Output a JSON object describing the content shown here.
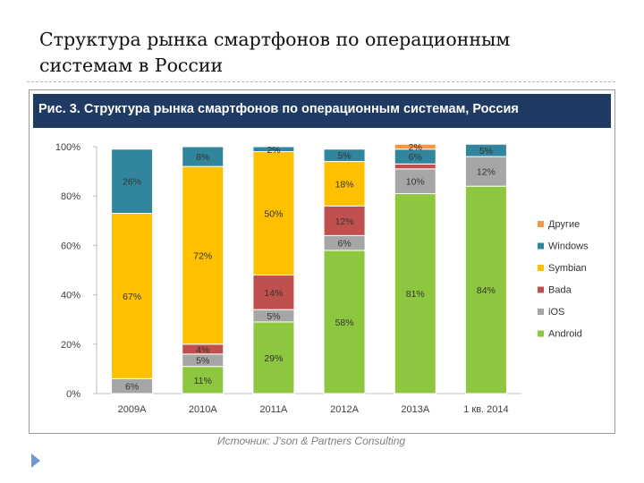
{
  "slide": {
    "title_lines": [
      "Структура рынка смартфонов по операционным",
      "системам в России"
    ],
    "source": "Источник: J'son & Partners Consulting"
  },
  "chart_data": {
    "type": "bar",
    "stacked": true,
    "title": "Рис. 3. Структура рынка смартфонов по операционным системам, Россия",
    "categories": [
      "2009А",
      "2010А",
      "2011А",
      "2012А",
      "2013А",
      "1 кв. 2014"
    ],
    "ylim": [
      0,
      100
    ],
    "yticks": [
      "0%",
      "20%",
      "40%",
      "60%",
      "80%",
      "100%"
    ],
    "grid": false,
    "legend_position": "right",
    "series": [
      {
        "name": "Android",
        "color": "#8dc63f",
        "values": [
          0,
          11,
          29,
          58,
          81,
          84
        ],
        "labels": [
          "",
          "11%",
          "29%",
          "58%",
          "81%",
          "84%"
        ]
      },
      {
        "name": "iOS",
        "color": "#a6a6a6",
        "values": [
          6,
          5,
          5,
          6,
          10,
          12
        ],
        "labels": [
          "6%",
          "5%",
          "5%",
          "6%",
          "10%",
          "12%"
        ]
      },
      {
        "name": "Bada",
        "color": "#c0504d",
        "values": [
          0,
          4,
          14,
          12,
          2,
          0
        ],
        "labels": [
          "",
          "4%",
          "14%",
          "12%",
          "",
          ""
        ]
      },
      {
        "name": "Symbian",
        "color": "#ffc000",
        "values": [
          67,
          72,
          50,
          18,
          0,
          0
        ],
        "labels": [
          "67%",
          "72%",
          "50%",
          "18%",
          "",
          ""
        ]
      },
      {
        "name": "Windows",
        "color": "#31859c",
        "values": [
          26,
          8,
          2,
          5,
          6,
          5
        ],
        "labels": [
          "26%",
          "8%",
          "2%",
          "5%",
          "6%",
          "5%"
        ]
      },
      {
        "name": "Другие",
        "color": "#f79646",
        "values": [
          0,
          0,
          0,
          0,
          2,
          0
        ],
        "labels": [
          "",
          "",
          "",
          "",
          "2%",
          ""
        ]
      }
    ],
    "legend_order": [
      "Другие",
      "Windows",
      "Symbian",
      "Bada",
      "iOS",
      "Android"
    ]
  }
}
